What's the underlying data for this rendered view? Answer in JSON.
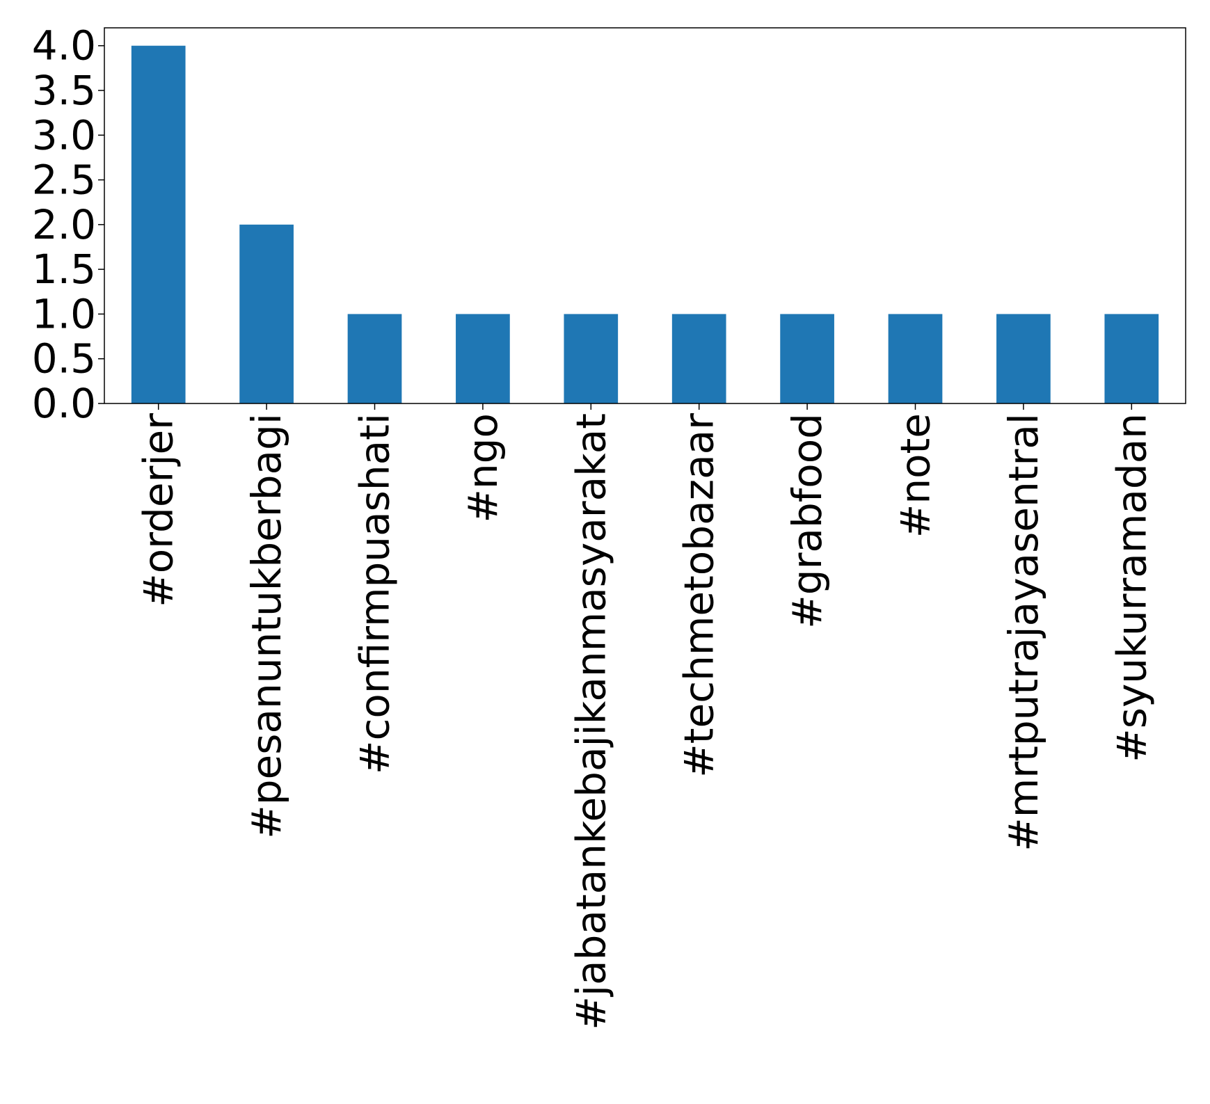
{
  "chart_data": {
    "type": "bar",
    "title": "",
    "xlabel": "",
    "ylabel": "",
    "categories": [
      "#orderjer",
      "#pesanuntukberbagi",
      "#confirmpuashati",
      "#ngo",
      "#jabatankebajikanmasyarakat",
      "#techmetobazaar",
      "#grabfood",
      "#note",
      "#mrtputrajayasentral",
      "#syukurramadan"
    ],
    "values": [
      4,
      2,
      1,
      1,
      1,
      1,
      1,
      1,
      1,
      1
    ],
    "ylim": [
      0,
      4.2
    ],
    "yticks": [
      0,
      0.5,
      1,
      1.5,
      2,
      2.5,
      3,
      3.5,
      4
    ],
    "ytick_labels": [
      "0.0",
      "0.5",
      "1.0",
      "1.5",
      "2.0",
      "2.5",
      "3.0",
      "3.5",
      "4.0"
    ],
    "bar_color": "#1f77b4",
    "grid": false,
    "legend": "none"
  }
}
